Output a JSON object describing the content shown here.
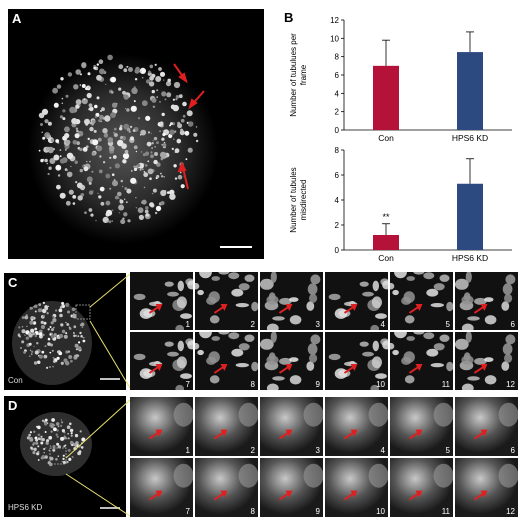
{
  "panels": {
    "A": {
      "letter": "A"
    },
    "B": {
      "letter": "B"
    },
    "C": {
      "letter": "C",
      "condition": "Con"
    },
    "D": {
      "letter": "D",
      "condition": "HPS6 KD"
    }
  },
  "frames": [
    "1",
    "2",
    "3",
    "4",
    "5",
    "6",
    "7",
    "8",
    "9",
    "10",
    "11",
    "12"
  ],
  "colors": {
    "con": "#b5123a",
    "kd": "#2c4a80",
    "arrow": "#e02020",
    "zoom_line": "#e8e070"
  },
  "chart_data": [
    {
      "type": "bar",
      "categories": [
        "Con",
        "HPS6 KD"
      ],
      "values": [
        7.0,
        8.5
      ],
      "errors": [
        2.8,
        2.2
      ],
      "ylabel": "Number of tubulues per frame",
      "ylabel_lines": [
        "Number of tubulues per",
        "frame"
      ],
      "ylim": [
        0,
        12
      ],
      "yticks": [
        "0",
        "2",
        "4",
        "6",
        "8",
        "10",
        "12"
      ],
      "significance": ""
    },
    {
      "type": "bar",
      "categories": [
        "Con",
        "HPS6 KD"
      ],
      "values": [
        1.2,
        5.3
      ],
      "errors": [
        0.9,
        2.0
      ],
      "ylabel": "Number of tubules misdirected",
      "ylabel_lines": [
        "Number of tubules",
        "misdirected"
      ],
      "ylim": [
        0,
        8
      ],
      "yticks": [
        "0",
        "2",
        "4",
        "6",
        "8"
      ],
      "significance": "**"
    }
  ]
}
